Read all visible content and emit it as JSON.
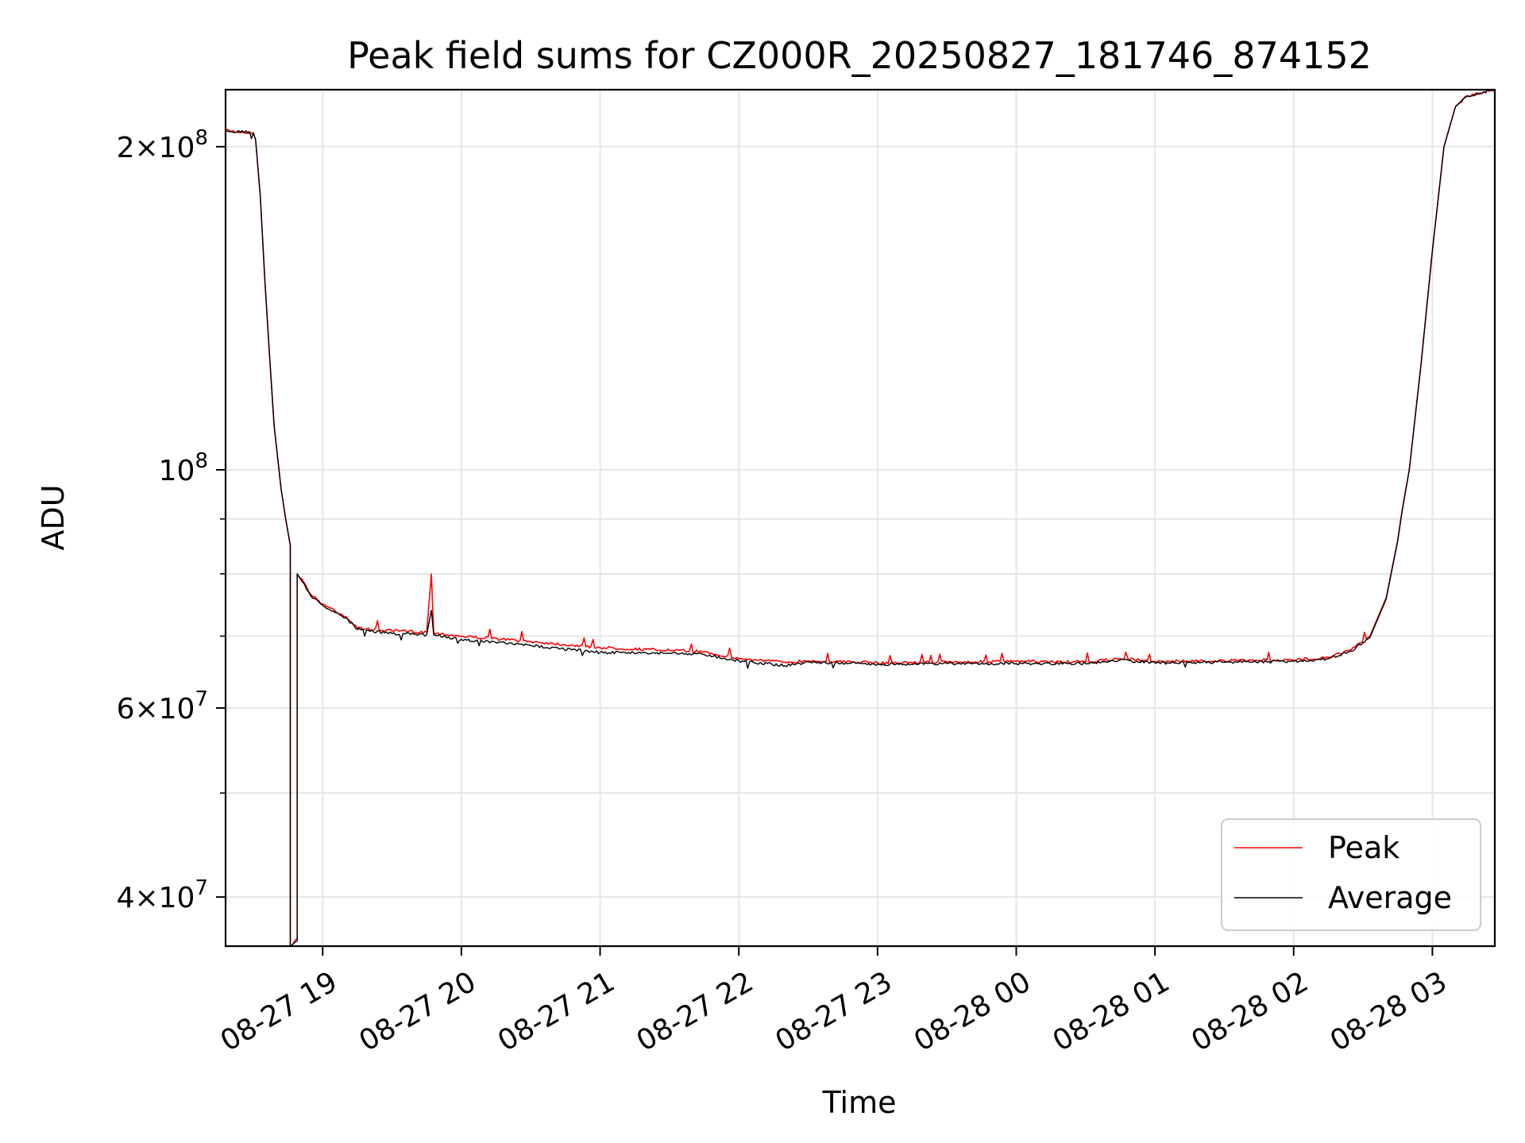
{
  "chart_data": {
    "type": "line",
    "title": "Peak field sums for CZ000R_20250827_181746_874152",
    "xlabel": "Time",
    "ylabel": "ADU",
    "y_scale": "log",
    "x_range": [
      "2025-08-27 18:18",
      "2025-08-28 03:27"
    ],
    "ylim": [
      36000000,
      226000000
    ],
    "grid": true,
    "legend_placement": "lower-right",
    "x_ticks": [
      {
        "t": "2025-08-27 19:00",
        "label": "08-27 19"
      },
      {
        "t": "2025-08-27 20:00",
        "label": "08-27 20"
      },
      {
        "t": "2025-08-27 21:00",
        "label": "08-27 21"
      },
      {
        "t": "2025-08-27 22:00",
        "label": "08-27 22"
      },
      {
        "t": "2025-08-27 23:00",
        "label": "08-27 23"
      },
      {
        "t": "2025-08-28 00:00",
        "label": "08-28 00"
      },
      {
        "t": "2025-08-28 01:00",
        "label": "08-28 01"
      },
      {
        "t": "2025-08-28 02:00",
        "label": "08-28 02"
      },
      {
        "t": "2025-08-28 03:00",
        "label": "08-28 03"
      }
    ],
    "y_major_ticks": [
      {
        "value": 40000000,
        "mantissa": "4",
        "exponent": "7"
      },
      {
        "value": 60000000,
        "mantissa": "6",
        "exponent": "7"
      },
      {
        "value": 100000000,
        "mantissa": "",
        "exponent": "8"
      },
      {
        "value": 200000000,
        "mantissa": "2",
        "exponent": "8"
      }
    ],
    "y_minor_ticks": [
      50000000,
      70000000,
      80000000,
      90000000
    ],
    "series": [
      {
        "name": "Peak",
        "color": "#ff0000",
        "points": [
          [
            "2025-08-27 18:18",
            207000000
          ],
          [
            "2025-08-27 18:30",
            206000000
          ],
          [
            "2025-08-27 18:31",
            203000000
          ],
          [
            "2025-08-27 18:33",
            180000000
          ],
          [
            "2025-08-27 18:35",
            150000000
          ],
          [
            "2025-08-27 18:37",
            128000000
          ],
          [
            "2025-08-27 18:39",
            110000000
          ],
          [
            "2025-08-27 18:42",
            96000000
          ],
          [
            "2025-08-27 18:44",
            90000000
          ],
          [
            "2025-08-27 18:46",
            85000000
          ],
          [
            "2025-08-27 18:46",
            36000000
          ],
          [
            "2025-08-27 18:49",
            36600000
          ],
          [
            "2025-08-27 18:49",
            80000000
          ],
          [
            "2025-08-27 18:52",
            78500000
          ],
          [
            "2025-08-27 18:55",
            76500000
          ],
          [
            "2025-08-27 19:00",
            75000000
          ],
          [
            "2025-08-27 19:10",
            73000000
          ],
          [
            "2025-08-27 19:15",
            71200000
          ],
          [
            "2025-08-27 19:30",
            70800000
          ],
          [
            "2025-08-27 19:45",
            70600000
          ],
          [
            "2025-08-27 19:47",
            80000000
          ],
          [
            "2025-08-27 19:48",
            70500000
          ],
          [
            "2025-08-27 20:00",
            70000000
          ],
          [
            "2025-08-27 20:30",
            69200000
          ],
          [
            "2025-08-27 21:00",
            68300000
          ],
          [
            "2025-08-27 21:30",
            67900000
          ],
          [
            "2025-08-27 21:45",
            67700000
          ],
          [
            "2025-08-27 22:00",
            66700000
          ],
          [
            "2025-08-27 22:20",
            66200000
          ],
          [
            "2025-08-27 22:30",
            66400000
          ],
          [
            "2025-08-27 23:00",
            66100000
          ],
          [
            "2025-08-27 23:30",
            66200000
          ],
          [
            "2025-08-28 00:00",
            66300000
          ],
          [
            "2025-08-28 00:30",
            66200000
          ],
          [
            "2025-08-28 00:45",
            66700000
          ],
          [
            "2025-08-28 01:00",
            66300000
          ],
          [
            "2025-08-28 01:30",
            66400000
          ],
          [
            "2025-08-28 02:00",
            66500000
          ],
          [
            "2025-08-28 02:15",
            66900000
          ],
          [
            "2025-08-28 02:25",
            68000000
          ],
          [
            "2025-08-28 02:33",
            70000000
          ],
          [
            "2025-08-28 02:40",
            76000000
          ],
          [
            "2025-08-28 02:45",
            86000000
          ],
          [
            "2025-08-28 02:47",
            92000000
          ],
          [
            "2025-08-28 02:50",
            100000000
          ],
          [
            "2025-08-28 02:55",
            125000000
          ],
          [
            "2025-08-28 03:00",
            160000000
          ],
          [
            "2025-08-28 03:05",
            200000000
          ],
          [
            "2025-08-28 03:10",
            218000000
          ],
          [
            "2025-08-28 03:15",
            223000000
          ],
          [
            "2025-08-28 03:27",
            226000000
          ]
        ]
      },
      {
        "name": "Average",
        "color": "#000000",
        "points": [
          [
            "2025-08-27 18:18",
            207000000
          ],
          [
            "2025-08-27 18:30",
            206000000
          ],
          [
            "2025-08-27 18:31",
            203000000
          ],
          [
            "2025-08-27 18:33",
            180000000
          ],
          [
            "2025-08-27 18:35",
            150000000
          ],
          [
            "2025-08-27 18:37",
            128000000
          ],
          [
            "2025-08-27 18:39",
            110000000
          ],
          [
            "2025-08-27 18:42",
            96000000
          ],
          [
            "2025-08-27 18:44",
            90000000
          ],
          [
            "2025-08-27 18:46",
            85000000
          ],
          [
            "2025-08-27 18:46",
            36000000
          ],
          [
            "2025-08-27 18:49",
            36400000
          ],
          [
            "2025-08-27 18:49",
            80000000
          ],
          [
            "2025-08-27 18:52",
            78300000
          ],
          [
            "2025-08-27 18:55",
            76200000
          ],
          [
            "2025-08-27 19:00",
            74800000
          ],
          [
            "2025-08-27 19:10",
            72800000
          ],
          [
            "2025-08-27 19:15",
            71000000
          ],
          [
            "2025-08-27 19:30",
            70400000
          ],
          [
            "2025-08-27 19:45",
            70200000
          ],
          [
            "2025-08-27 19:47",
            74000000
          ],
          [
            "2025-08-27 19:48",
            70200000
          ],
          [
            "2025-08-27 20:00",
            69500000
          ],
          [
            "2025-08-27 20:30",
            68600000
          ],
          [
            "2025-08-27 21:00",
            67600000
          ],
          [
            "2025-08-27 21:30",
            67500000
          ],
          [
            "2025-08-27 21:45",
            67300000
          ],
          [
            "2025-08-27 22:00",
            66400000
          ],
          [
            "2025-08-27 22:20",
            65700000
          ],
          [
            "2025-08-27 22:30",
            66200000
          ],
          [
            "2025-08-27 23:00",
            65900000
          ],
          [
            "2025-08-27 23:30",
            66000000
          ],
          [
            "2025-08-28 00:00",
            66000000
          ],
          [
            "2025-08-28 00:30",
            66000000
          ],
          [
            "2025-08-28 00:45",
            66500000
          ],
          [
            "2025-08-28 01:00",
            66100000
          ],
          [
            "2025-08-28 01:30",
            66200000
          ],
          [
            "2025-08-28 02:00",
            66300000
          ],
          [
            "2025-08-28 02:15",
            66700000
          ],
          [
            "2025-08-28 02:25",
            67800000
          ],
          [
            "2025-08-28 02:33",
            69800000
          ],
          [
            "2025-08-28 02:40",
            75800000
          ],
          [
            "2025-08-28 02:45",
            85800000
          ],
          [
            "2025-08-28 02:47",
            91800000
          ],
          [
            "2025-08-28 02:50",
            100000000
          ],
          [
            "2025-08-28 02:55",
            125000000
          ],
          [
            "2025-08-28 03:00",
            160000000
          ],
          [
            "2025-08-28 03:05",
            200000000
          ],
          [
            "2025-08-28 03:10",
            218000000
          ],
          [
            "2025-08-28 03:15",
            223000000
          ],
          [
            "2025-08-28 03:27",
            226000000
          ]
        ]
      }
    ]
  }
}
